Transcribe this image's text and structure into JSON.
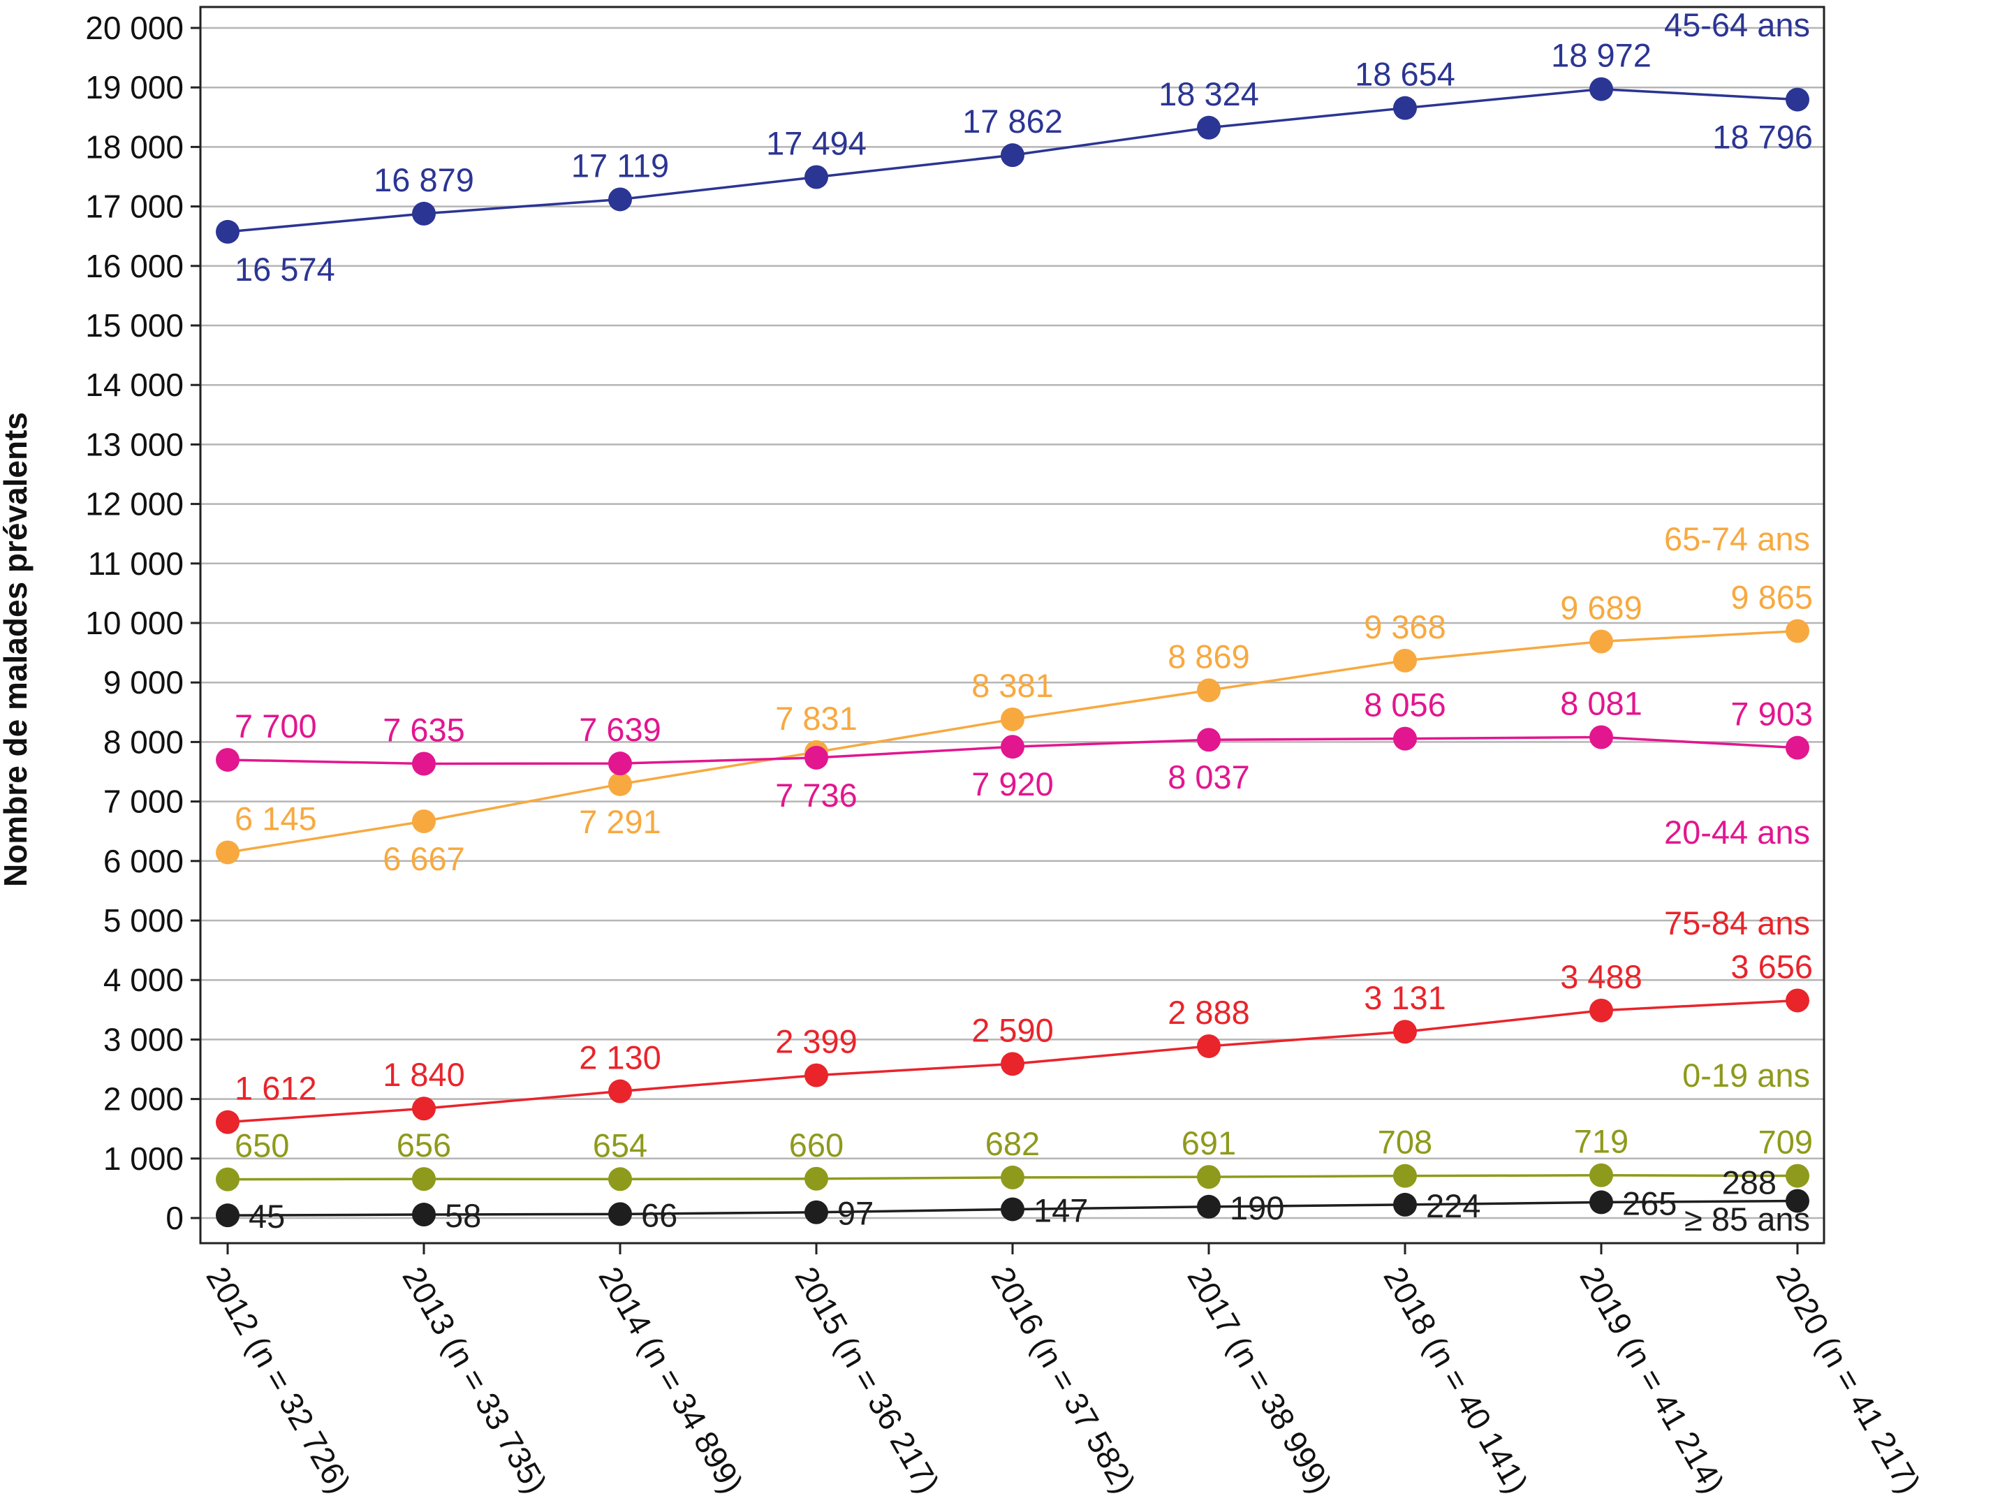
{
  "chart_data": {
    "type": "line",
    "title": "",
    "xlabel": "",
    "ylabel": "Nombre de malades prévalents",
    "ylim": [
      0,
      20000
    ],
    "yticks": [
      "0",
      "1 000",
      "2 000",
      "3 000",
      "4 000",
      "5 000",
      "6 000",
      "7 000",
      "8 000",
      "9 000",
      "10 000",
      "11 000",
      "12 000",
      "13 000",
      "14 000",
      "15 000",
      "16 000",
      "17 000",
      "18 000",
      "19 000",
      "20 000"
    ],
    "categories": [
      "2012 (n = 32 726)",
      "2013 (n = 33 735)",
      "2014 (n = 34 899)",
      "2015 (n = 36 217)",
      "2016 (n = 37 582)",
      "2017 (n = 38 999)",
      "2018 (n = 40 141)",
      "2019 (n = 41 214)",
      "2020 (n = 41 217)"
    ],
    "grid": true,
    "series": [
      {
        "name": "45-64 ans",
        "color": "#2b3593",
        "values": [
          16574,
          16879,
          17119,
          17494,
          17862,
          18324,
          18654,
          18972,
          18796
        ],
        "labels": [
          "16 574",
          "16 879",
          "17 119",
          "17 494",
          "17 862",
          "18 324",
          "18 654",
          "18 972",
          "18 796"
        ],
        "label_pos": [
          "below",
          "above",
          "above",
          "above",
          "above",
          "above",
          "above",
          "above",
          "below"
        ]
      },
      {
        "name": "65-74 ans",
        "color": "#f7a940",
        "values": [
          6145,
          6667,
          7291,
          7831,
          8381,
          8869,
          9368,
          9689,
          9865
        ],
        "labels": [
          "6 145",
          "6 667",
          "7 291",
          "7 831",
          "8 381",
          "8 869",
          "9 368",
          "9 689",
          "9 865"
        ],
        "label_pos": [
          "above",
          "below",
          "below",
          "above",
          "above",
          "above",
          "above",
          "above",
          "above"
        ]
      },
      {
        "name": "20-44 ans",
        "color": "#e2168f",
        "values": [
          7700,
          7635,
          7639,
          7736,
          7920,
          8037,
          8056,
          8081,
          7903
        ],
        "labels": [
          "7 700",
          "7 635",
          "7 639",
          "7 736",
          "7 920",
          "8 037",
          "8 056",
          "8 081",
          "7 903"
        ],
        "label_pos": [
          "above",
          "above",
          "above",
          "below",
          "below",
          "below",
          "above",
          "above",
          "above"
        ]
      },
      {
        "name": "75-84 ans",
        "color": "#e9242b",
        "values": [
          1612,
          1840,
          2130,
          2399,
          2590,
          2888,
          3131,
          3488,
          3656
        ],
        "labels": [
          "1 612",
          "1 840",
          "2 130",
          "2 399",
          "2 590",
          "2 888",
          "3 131",
          "3 488",
          "3 656"
        ],
        "label_pos": [
          "above",
          "above",
          "above",
          "above",
          "above",
          "above",
          "above",
          "above",
          "above"
        ]
      },
      {
        "name": "0-19 ans",
        "color": "#8e9a1b",
        "values": [
          650,
          656,
          654,
          660,
          682,
          691,
          708,
          719,
          709
        ],
        "labels": [
          "650",
          "656",
          "654",
          "660",
          "682",
          "691",
          "708",
          "719",
          "709"
        ],
        "label_pos": [
          "above",
          "above",
          "above",
          "above",
          "above",
          "above",
          "above",
          "above",
          "above"
        ]
      },
      {
        "name": "≥ 85 ans",
        "color": "#1e1e1e",
        "values": [
          45,
          58,
          66,
          97,
          147,
          190,
          224,
          265,
          288
        ],
        "labels": [
          "45",
          "58",
          "66",
          "97",
          "147",
          "190",
          "224",
          "265",
          "288"
        ],
        "label_pos": [
          "right",
          "right",
          "right",
          "right",
          "right",
          "right",
          "right",
          "right",
          "left"
        ]
      }
    ]
  }
}
